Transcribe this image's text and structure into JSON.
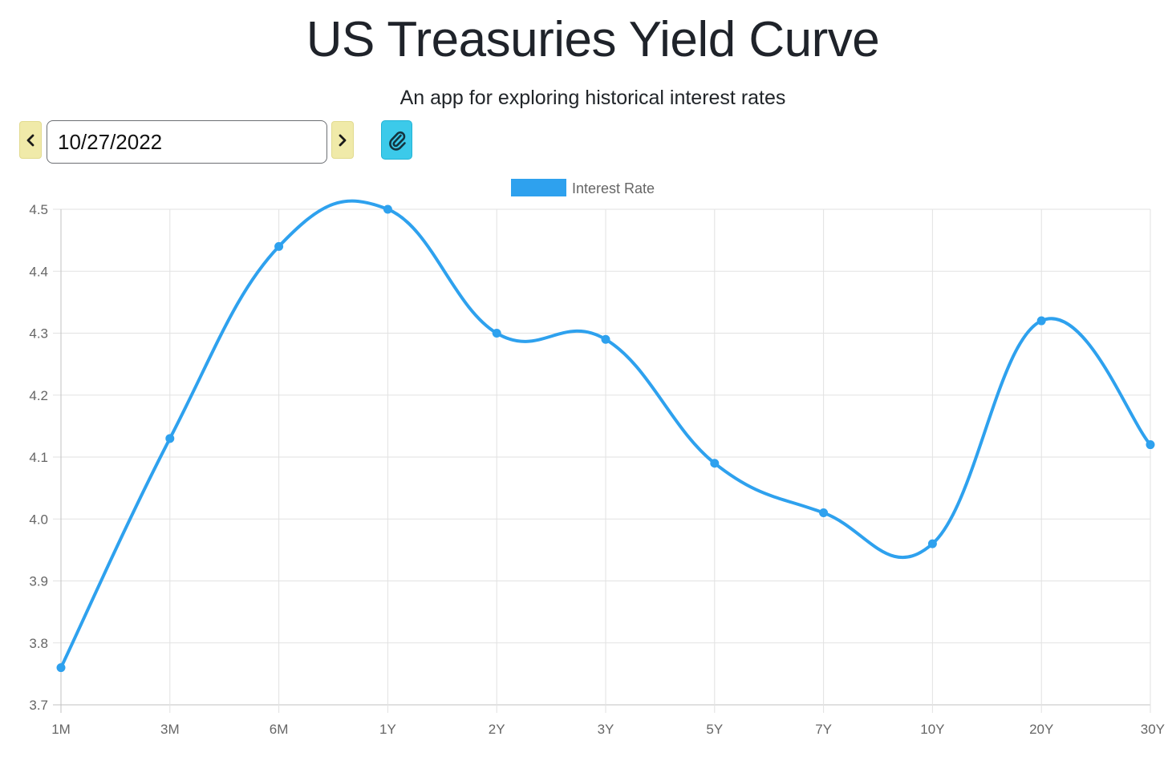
{
  "header": {
    "title": "US Treasuries Yield Curve",
    "subtitle": "An app for exploring historical interest rates"
  },
  "toolbar": {
    "date_value": "10/27/2022",
    "prev_icon": "chevron-left-icon",
    "next_icon": "chevron-right-icon",
    "link_icon": "paperclip-icon",
    "nav_button_color": "#f0eaa9",
    "link_button_color": "#3ccaea"
  },
  "chart_data": {
    "type": "line",
    "categories": [
      "1M",
      "3M",
      "6M",
      "1Y",
      "2Y",
      "3Y",
      "5Y",
      "7Y",
      "10Y",
      "20Y",
      "30Y"
    ],
    "series": [
      {
        "name": "Interest Rate",
        "values": [
          3.76,
          4.13,
          4.44,
          4.5,
          4.3,
          4.29,
          4.09,
          4.01,
          3.96,
          4.32,
          4.12
        ],
        "color": "#2ea1ee"
      }
    ],
    "yticks": [
      "4.5",
      "4.4",
      "4.3",
      "4.2",
      "4.1",
      "4.0",
      "3.9",
      "3.8",
      "3.7"
    ],
    "ylim": [
      3.7,
      4.5
    ],
    "grid": true,
    "legend_position": "top",
    "smooth": true
  }
}
